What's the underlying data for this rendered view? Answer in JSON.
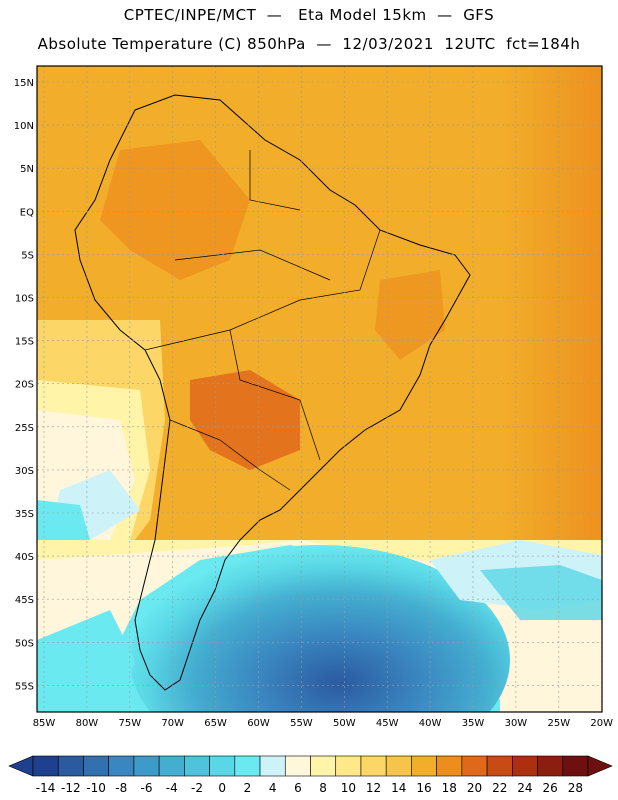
{
  "header": {
    "line1": "CPTEC/INPE/MCT  —   Eta Model 15km  —  GFS",
    "line2": "Absolute Temperature (C) 850hPa  —  12/03/2021  12UTC  fct=184h"
  },
  "map": {
    "lat_labels": [
      "15N",
      "10N",
      "5N",
      "EQ",
      "5S",
      "10S",
      "15S",
      "20S",
      "25S",
      "30S",
      "35S",
      "40S",
      "45S",
      "50S",
      "55S"
    ],
    "lon_labels": [
      "85W",
      "80W",
      "75W",
      "70W",
      "65W",
      "60W",
      "55W",
      "50W",
      "45W",
      "40W",
      "35W",
      "30W",
      "25W",
      "20W"
    ],
    "lat_range": [
      15,
      -56
    ],
    "lon_range": [
      -86,
      -20
    ],
    "grid": true
  },
  "colorbar": {
    "labels": [
      "-14",
      "-12",
      "-10",
      "-8",
      "-6",
      "-4",
      "-2",
      "0",
      "2",
      "4",
      "6",
      "8",
      "10",
      "12",
      "14",
      "16",
      "18",
      "20",
      "22",
      "24",
      "26",
      "28"
    ],
    "colors": [
      "#1f3f8f",
      "#2b5aa0",
      "#3270b0",
      "#3a86c0",
      "#3e9ac8",
      "#44aed0",
      "#4fc3dc",
      "#5ad7e6",
      "#6aeaf0",
      "#cdf3f9",
      "#fff6dc",
      "#fff4a8",
      "#ffe88a",
      "#fcd768",
      "#f6c44a",
      "#f2ae2a",
      "#ec8e1e",
      "#e0681a",
      "#c84a14",
      "#ac3010",
      "#8c1e10",
      "#6e1010"
    ]
  }
}
